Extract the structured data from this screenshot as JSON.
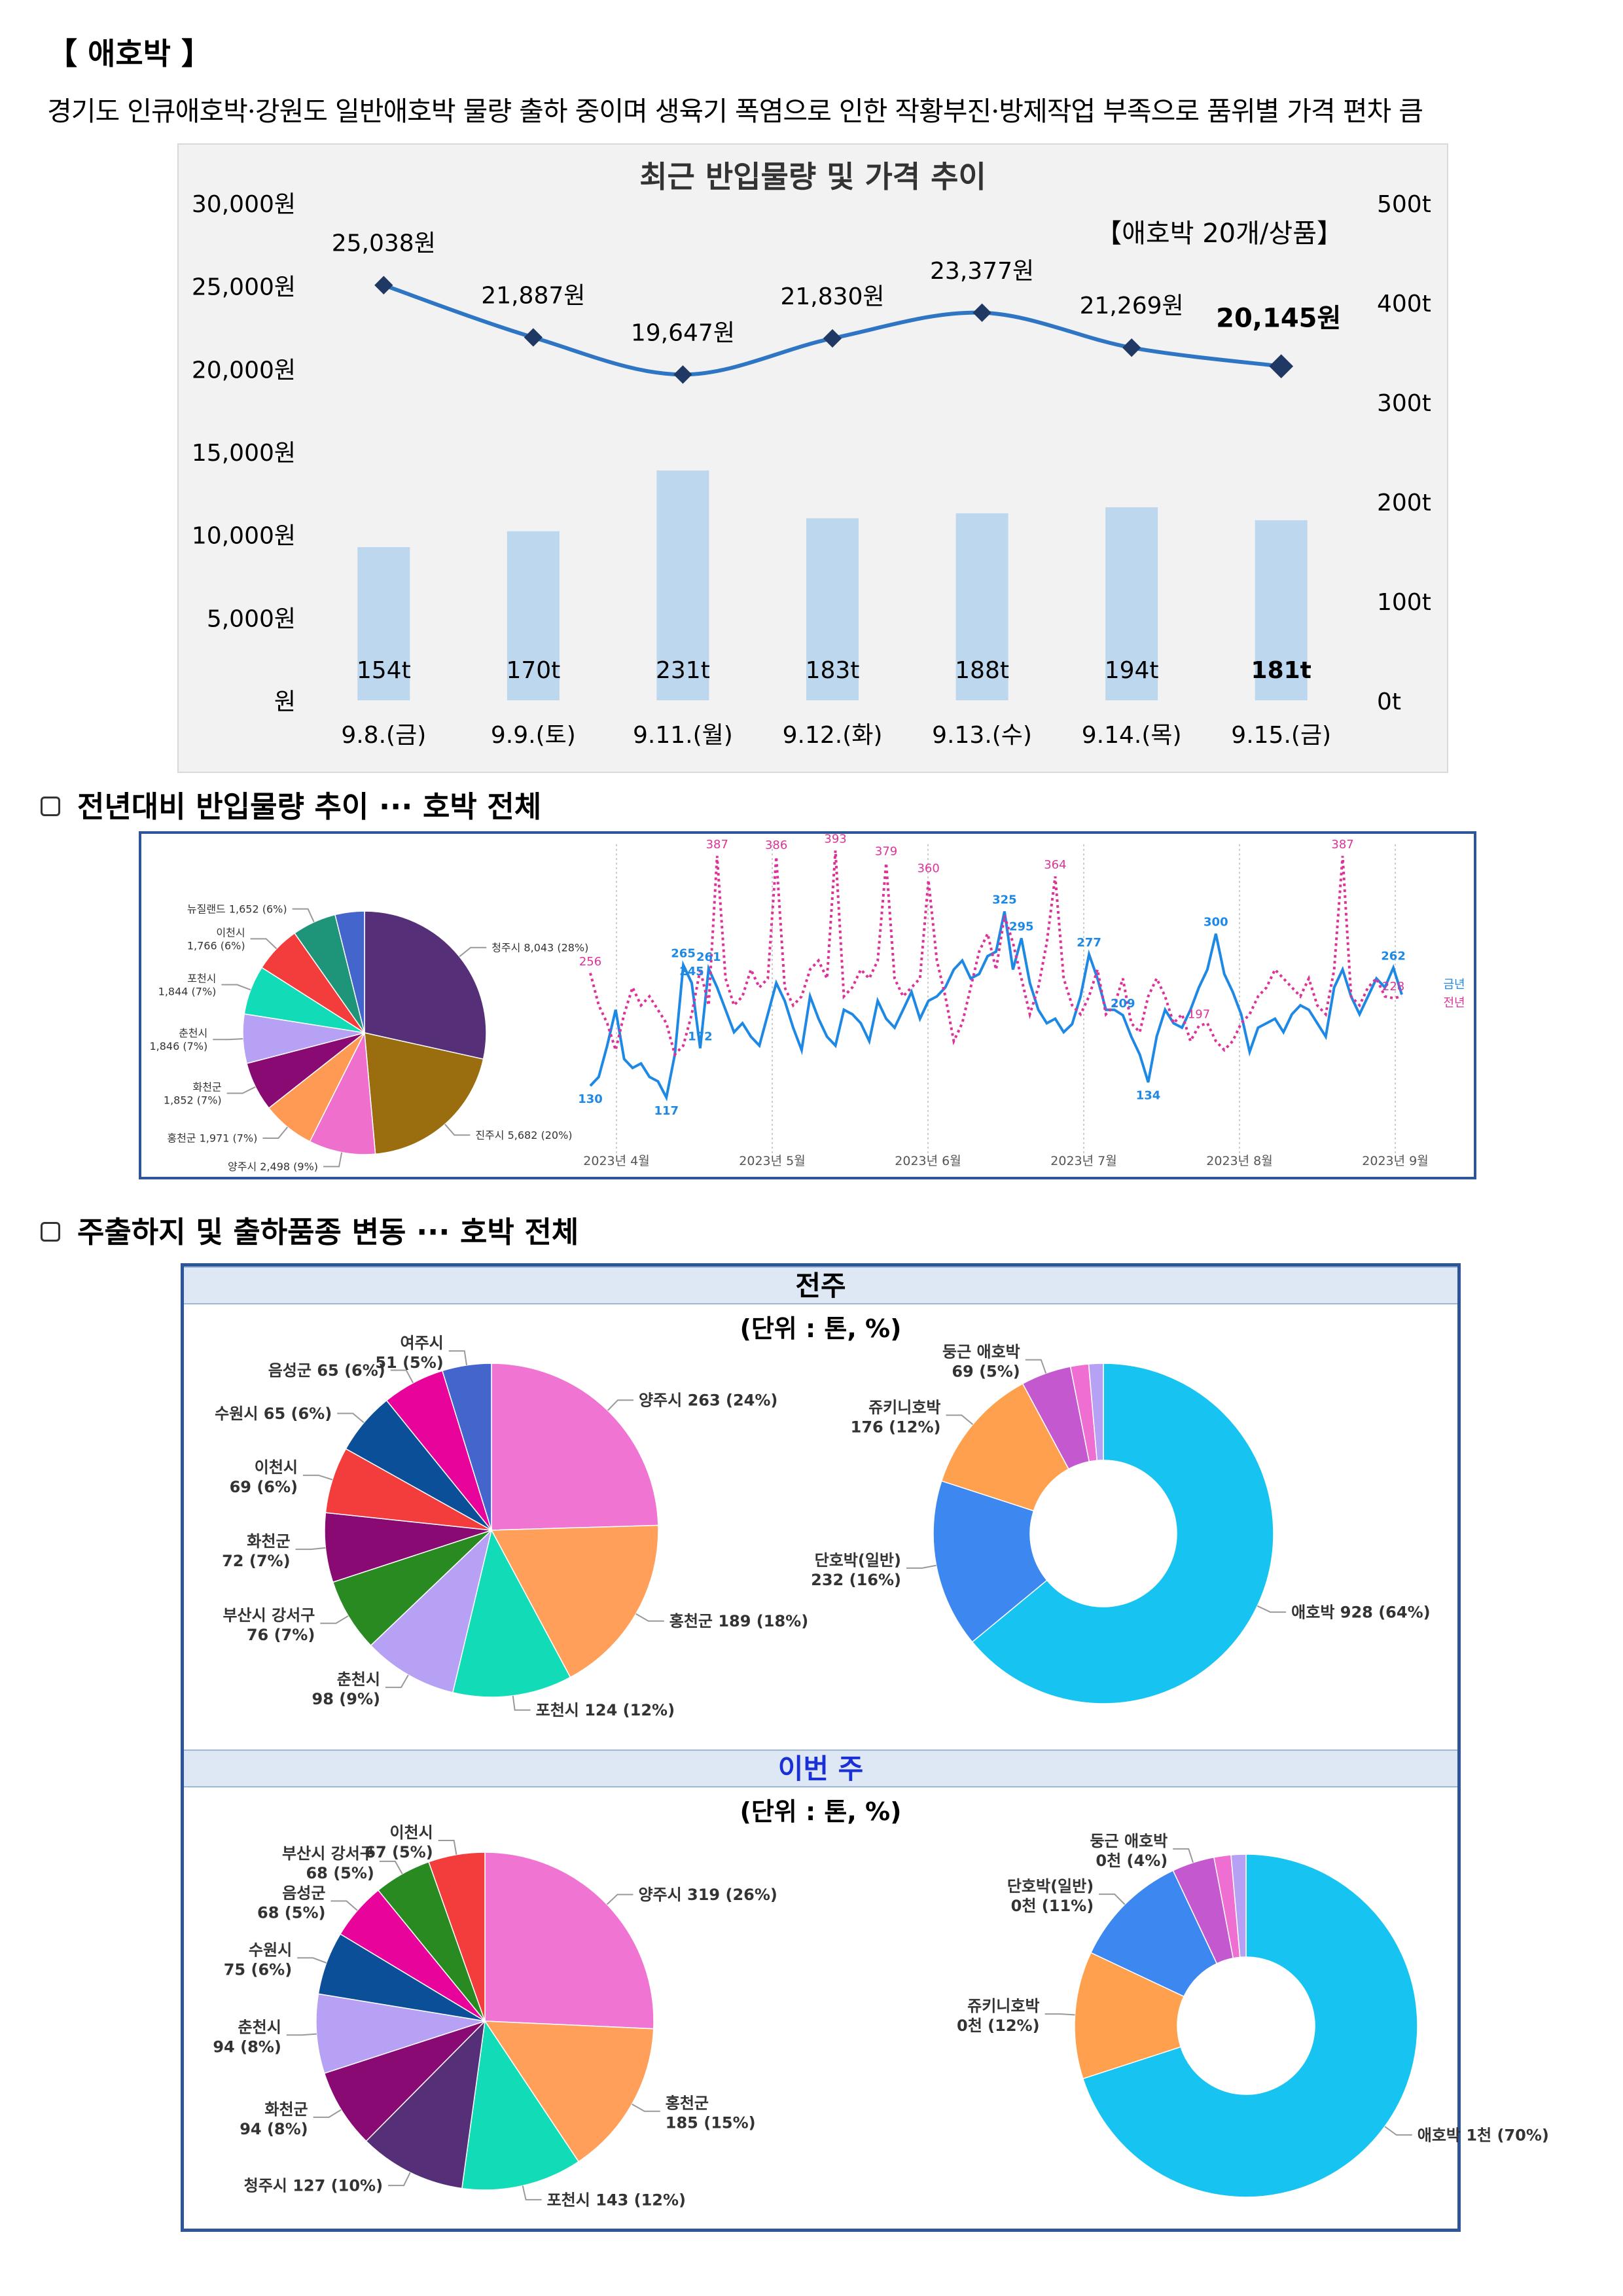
{
  "header": {
    "title": "【 애호박 】",
    "description": "경기도 인큐애호박·강원도 일반애호박 물량 출하 중이며 생육기 폭염으로 인한 작황부진·방제작업 부족으로 품위별 가격 편차 큼"
  },
  "sections": {
    "yoy_heading": "전년대비 반입물량 추이 ··· 호박 전체",
    "origin_heading": "주출하지 및 출하품종 변동 ··· 호박 전체"
  },
  "chart_data": [
    {
      "id": "recent-price-volume",
      "type": "bar+line",
      "title": "최근 반입물량 및 가격 추이",
      "annotation": "【애호박 20개/상품】",
      "categories": [
        "9.8.(금)",
        "9.9.(토)",
        "9.11.(월)",
        "9.12.(화)",
        "9.13.(수)",
        "9.14.(목)",
        "9.15.(금)"
      ],
      "series": [
        {
          "kind": "line",
          "axis": "left",
          "values": [
            25038,
            21887,
            19647,
            21830,
            23377,
            21269,
            20145
          ],
          "labels": [
            "25,038원",
            "21,887원",
            "19,647원",
            "21,830원",
            "23,377원",
            "21,269원",
            "20,145원"
          ]
        },
        {
          "kind": "bar",
          "axis": "right",
          "values": [
            154,
            170,
            231,
            183,
            188,
            194,
            181
          ],
          "labels": [
            "154t",
            "170t",
            "231t",
            "183t",
            "188t",
            "194t",
            "181t"
          ]
        }
      ],
      "left_axis": {
        "ylim": [
          0,
          30000
        ],
        "ticks": [
          "원",
          "5,000원",
          "10,000원",
          "15,000원",
          "20,000원",
          "25,000원",
          "30,000원"
        ]
      },
      "right_axis": {
        "ylim": [
          0,
          500
        ],
        "ticks": [
          "0t",
          "100t",
          "200t",
          "300t",
          "400t",
          "500t"
        ]
      },
      "colors": {
        "line": "#2e75c4",
        "marker": "#1f3864",
        "bar": "#bdd7ee"
      }
    },
    {
      "id": "yoy-origin-pie",
      "type": "pie",
      "slices": [
        {
          "label": "청주시 8,043 (28%)",
          "value": 8043,
          "color": "#553078"
        },
        {
          "label": "진주시 5,682 (20%)",
          "value": 5682,
          "color": "#9a6d0e"
        },
        {
          "label": "양주시 2,498 (9%)",
          "value": 2498,
          "color": "#ee70cc"
        },
        {
          "label": "홍천군 1,971 (7%)",
          "value": 1971,
          "color": "#ff9a54"
        },
        {
          "label": "화천군 1,852 (7%)",
          "value": 1852,
          "color": "#8a0a74"
        },
        {
          "label": "춘천시 1,846 (7%)",
          "value": 1846,
          "color": "#b7a1f4"
        },
        {
          "label": "포천시 1,844 (7%)",
          "value": 1844,
          "color": "#12dcb8"
        },
        {
          "label": "이천시 1,766 (6%)",
          "value": 1766,
          "color": "#f33d3d"
        },
        {
          "label": "뉴질랜드 1,652 (6%)",
          "value": 1652,
          "color": "#1e9578"
        },
        {
          "label": "",
          "value": 1100,
          "color": "#4466cc"
        }
      ]
    },
    {
      "id": "yoy-volume-line",
      "type": "line",
      "month_labels": [
        "2023년 4월",
        "2023년 5월",
        "2023년 6월",
        "2023년 7월",
        "2023년 8월",
        "2023년 9월"
      ],
      "series": [
        {
          "name": "금년",
          "color": "#1e88e5",
          "values": [
            130,
            140,
            175,
            215,
            160,
            150,
            155,
            140,
            135,
            117,
            165,
            265,
            245,
            172,
            261,
            240,
            215,
            190,
            200,
            185,
            175,
            210,
            245,
            225,
            195,
            170,
            230,
            205,
            185,
            175,
            215,
            210,
            200,
            180,
            225,
            205,
            195,
            215,
            235,
            205,
            225,
            230,
            240,
            260,
            270,
            250,
            255,
            275,
            280,
            325,
            260,
            295,
            245,
            215,
            200,
            205,
            190,
            199,
            230,
            277,
            250,
            215,
            215,
            209,
            185,
            165,
            134,
            185,
            215,
            200,
            195,
            215,
            240,
            260,
            300,
            255,
            235,
            210,
            168,
            195,
            200,
            205,
            190,
            210,
            220,
            215,
            200,
            185,
            240,
            260,
            230,
            210,
            230,
            250,
            240,
            262,
            232
          ],
          "labels": [
            "130",
            "117",
            "265",
            "172",
            "261",
            "245",
            "325",
            "295",
            "277",
            "209",
            "134",
            "300",
            "262"
          ]
        },
        {
          "name": "전년",
          "color": "#dd3399",
          "values": [
            256,
            220,
            200,
            170,
            210,
            240,
            220,
            230,
            215,
            200,
            165,
            175,
            210,
            260,
            220,
            387,
            250,
            220,
            230,
            260,
            240,
            250,
            386,
            240,
            220,
            230,
            260,
            270,
            250,
            393,
            230,
            240,
            260,
            250,
            270,
            379,
            250,
            230,
            240,
            250,
            360,
            270,
            230,
            180,
            200,
            240,
            280,
            300,
            260,
            320,
            290,
            250,
            210,
            240,
            290,
            364,
            250,
            220,
            210,
            230,
            260,
            210,
            220,
            250,
            200,
            190,
            230,
            250,
            230,
            200,
            210,
            180,
            197,
            200,
            180,
            170,
            180,
            200,
            210,
            230,
            240,
            260,
            250,
            240,
            230,
            250,
            220,
            210,
            260,
            387,
            230,
            220,
            240,
            250,
            230,
            228,
            230
          ],
          "labels": [
            "256",
            "387",
            "386",
            "393",
            "379",
            "360",
            "364",
            "197",
            "387",
            "228"
          ]
        }
      ],
      "legend": [
        "금년",
        "전년"
      ],
      "legend_placement": "right"
    },
    {
      "id": "prev-week-origin-pie",
      "type": "pie",
      "slices": [
        {
          "label": "양주시 263 (24%)",
          "value": 263,
          "color": "#f075d2"
        },
        {
          "label": "홍천군 189 (18%)",
          "value": 189,
          "color": "#ff9f5a"
        },
        {
          "label": "포천시 124 (12%)",
          "value": 124,
          "color": "#12dcb8"
        },
        {
          "label": "춘천시 98 (9%)",
          "value": 98,
          "color": "#b7a1f4"
        },
        {
          "label": "부산시 강서구 76 (7%)",
          "value": 76,
          "color": "#2a8a22"
        },
        {
          "label": "화천군 72 (7%)",
          "value": 72,
          "color": "#8a0a74"
        },
        {
          "label": "이천시 69 (6%)",
          "value": 69,
          "color": "#f33d3d"
        },
        {
          "label": "수원시 65 (6%)",
          "value": 65,
          "color": "#0a4f98"
        },
        {
          "label": "음성군 65 (6%)",
          "value": 65,
          "color": "#e8049a"
        },
        {
          "label": "여주시 51 (5%)",
          "value": 51,
          "color": "#4466cc"
        }
      ]
    },
    {
      "id": "prev-week-variety-donut",
      "type": "pie",
      "slices": [
        {
          "label": "애호박 928 (64%)",
          "value": 928,
          "color": "#17c4f1"
        },
        {
          "label": "단호박(일반) 232 (16%)",
          "value": 232,
          "color": "#3d88f0"
        },
        {
          "label": "쥬키니호박 176 (12%)",
          "value": 176,
          "color": "#ffa04e"
        },
        {
          "label": "둥근 애호박 69 (5%)",
          "value": 69,
          "color": "#c459cf"
        },
        {
          "label": "",
          "value": 25,
          "color": "#ee6fd1"
        },
        {
          "label": "",
          "value": 20,
          "color": "#b6a1f4"
        }
      ]
    },
    {
      "id": "this-week-origin-pie",
      "type": "pie",
      "slices": [
        {
          "label": "양주시 319 (26%)",
          "value": 319,
          "color": "#f075d2"
        },
        {
          "label": "홍천군 185 (15%)",
          "value": 185,
          "color": "#ff9f5a"
        },
        {
          "label": "포천시 143 (12%)",
          "value": 143,
          "color": "#12dcb8"
        },
        {
          "label": "청주시 127 (10%)",
          "value": 127,
          "color": "#553078"
        },
        {
          "label": "화천군 94 (8%)",
          "value": 94,
          "color": "#8a0a74"
        },
        {
          "label": "춘천시 94 (8%)",
          "value": 94,
          "color": "#b7a1f4"
        },
        {
          "label": "수원시 75 (6%)",
          "value": 75,
          "color": "#0a4f98"
        },
        {
          "label": "음성군 68 (5%)",
          "value": 68,
          "color": "#e8049a"
        },
        {
          "label": "부산시 강서구 68 (5%)",
          "value": 68,
          "color": "#2a8a22"
        },
        {
          "label": "이천시 67 (5%)",
          "value": 67,
          "color": "#f33d3d"
        }
      ]
    },
    {
      "id": "this-week-variety-donut",
      "type": "pie",
      "slices": [
        {
          "label": "애호박 1천 (70%)",
          "value": 70,
          "color": "#17c4f1"
        },
        {
          "label": "쥬키니호박 0천 (12%)",
          "value": 12,
          "color": "#ffa04e"
        },
        {
          "label": "단호박(일반) 0천 (11%)",
          "value": 11,
          "color": "#3d88f0"
        },
        {
          "label": "둥근 애호박 0천 (4%)",
          "value": 4,
          "color": "#c459cf"
        },
        {
          "label": "",
          "value": 1.6,
          "color": "#ee6fd1"
        },
        {
          "label": "",
          "value": 1.4,
          "color": "#b6a1f4"
        }
      ]
    }
  ],
  "weekly": {
    "prev_week_title": "전주",
    "this_week_title": "이번 주",
    "unit": "(단위 : 톤, %)"
  }
}
